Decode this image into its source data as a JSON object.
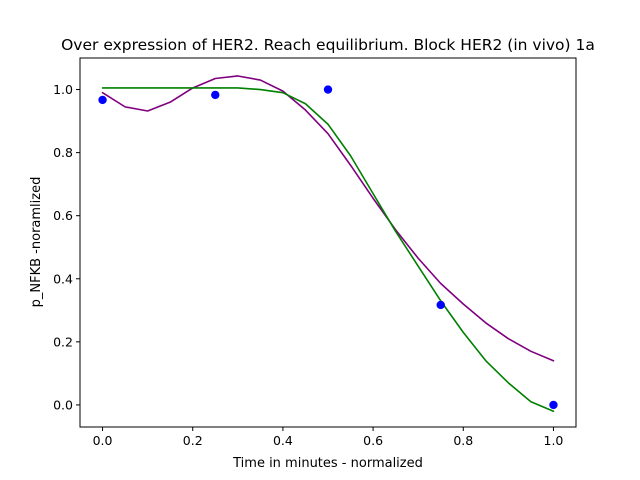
{
  "chart_data": {
    "type": "scatter",
    "title": "Over expression of HER2. Reach equilibrium. Block HER2 (in vivo) 1a",
    "xlabel": "Time in minutes - normalized",
    "ylabel": "p_NFKB -noramlized",
    "xlim": [
      -0.05,
      1.05
    ],
    "ylim": [
      -0.07,
      1.1
    ],
    "xticks": [
      0.0,
      0.2,
      0.4,
      0.6,
      0.8,
      1.0
    ],
    "yticks": [
      0.0,
      0.2,
      0.4,
      0.6,
      0.8,
      1.0
    ],
    "xtick_labels": [
      "0.0",
      "0.2",
      "0.4",
      "0.6",
      "0.8",
      "1.0"
    ],
    "ytick_labels": [
      "0.0",
      "0.2",
      "0.4",
      "0.6",
      "0.8",
      "1.0"
    ],
    "grid": false,
    "series": [
      {
        "kind": "points",
        "color": "#0000ff",
        "x": [
          0.0,
          0.25,
          0.5,
          0.75,
          1.0
        ],
        "y": [
          0.967,
          0.983,
          1.0,
          0.317,
          0.0
        ]
      },
      {
        "kind": "line",
        "color": "#800080",
        "x": [
          0.0,
          0.05,
          0.1,
          0.15,
          0.2,
          0.25,
          0.3,
          0.35,
          0.4,
          0.45,
          0.5,
          0.55,
          0.6,
          0.65,
          0.7,
          0.75,
          0.8,
          0.85,
          0.9,
          0.95,
          1.0
        ],
        "y": [
          0.99,
          0.945,
          0.932,
          0.96,
          1.005,
          1.035,
          1.043,
          1.03,
          0.995,
          0.935,
          0.86,
          0.76,
          0.655,
          0.555,
          0.465,
          0.385,
          0.32,
          0.26,
          0.21,
          0.17,
          0.14
        ]
      },
      {
        "kind": "line",
        "color": "#008000",
        "x": [
          0.0,
          0.1,
          0.2,
          0.3,
          0.35,
          0.4,
          0.45,
          0.5,
          0.55,
          0.6,
          0.65,
          0.7,
          0.75,
          0.8,
          0.85,
          0.9,
          0.95,
          1.0
        ],
        "y": [
          1.005,
          1.005,
          1.005,
          1.005,
          1.0,
          0.99,
          0.955,
          0.89,
          0.79,
          0.67,
          0.55,
          0.44,
          0.33,
          0.23,
          0.14,
          0.07,
          0.01,
          -0.02
        ]
      }
    ]
  }
}
